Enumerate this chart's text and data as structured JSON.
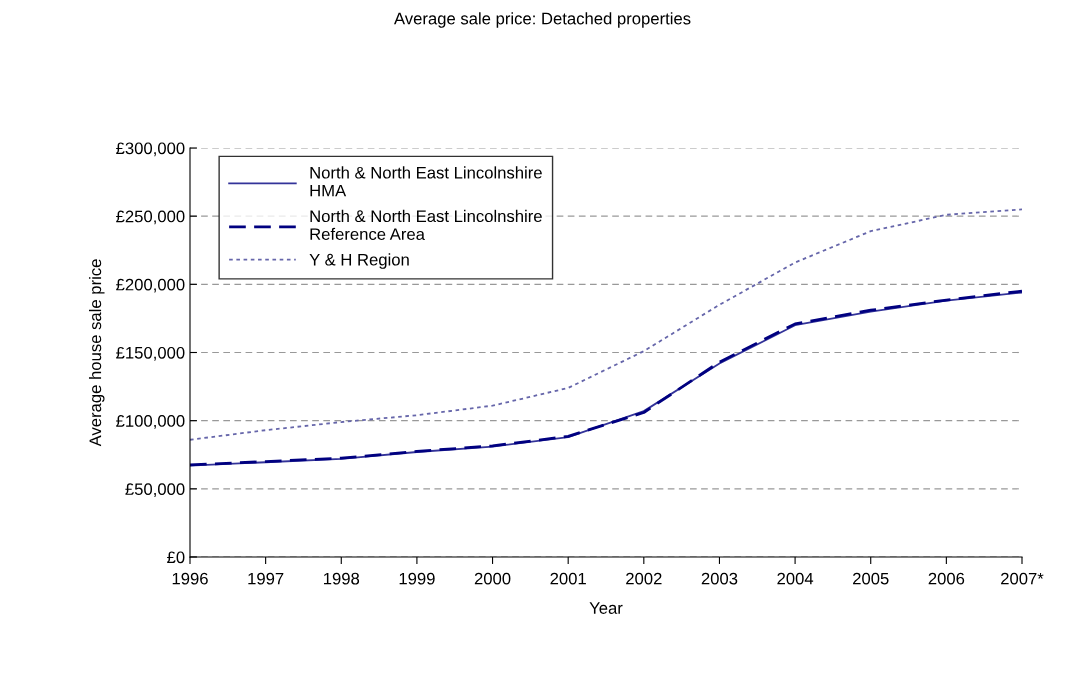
{
  "chart_data": {
    "type": "line",
    "title": "Average sale price: Detached properties",
    "xlabel": "Year",
    "ylabel": "Average house sale price",
    "categories": [
      "1996",
      "1997",
      "1998",
      "1999",
      "2000",
      "2001",
      "2002",
      "2003",
      "2004",
      "2005",
      "2006",
      "2007*"
    ],
    "series": [
      {
        "name": "North & North East Lincolnshire HMA",
        "color": "#333399",
        "line_style": "solid",
        "values": [
          67000,
          69500,
          72000,
          77000,
          81000,
          88000,
          107000,
          142000,
          170000,
          180000,
          188000,
          194000
        ]
      },
      {
        "name": "North & North East Lincolnshire Reference Area",
        "color": "#000080",
        "line_style": "dashed",
        "values": [
          67500,
          70000,
          72500,
          77500,
          81500,
          88500,
          106000,
          143000,
          171000,
          181000,
          188500,
          195000
        ]
      },
      {
        "name": "Y & H Region",
        "color": "#6666aa",
        "line_style": "dotted",
        "values": [
          86000,
          93000,
          99000,
          104000,
          111000,
          124000,
          151000,
          185000,
          216000,
          239000,
          251000,
          255000
        ]
      }
    ],
    "ylim": [
      0,
      300000
    ],
    "yticks": [
      {
        "value": 0,
        "label": "£0"
      },
      {
        "value": 50000,
        "label": "£50,000"
      },
      {
        "value": 100000,
        "label": "£100,000"
      },
      {
        "value": 150000,
        "label": "£150,000"
      },
      {
        "value": 200000,
        "label": "£200,000"
      },
      {
        "value": 250000,
        "label": "£250,000"
      },
      {
        "value": 300000,
        "label": "£300,000"
      }
    ],
    "grid": "y",
    "legend": "top left",
    "marker": "none"
  }
}
